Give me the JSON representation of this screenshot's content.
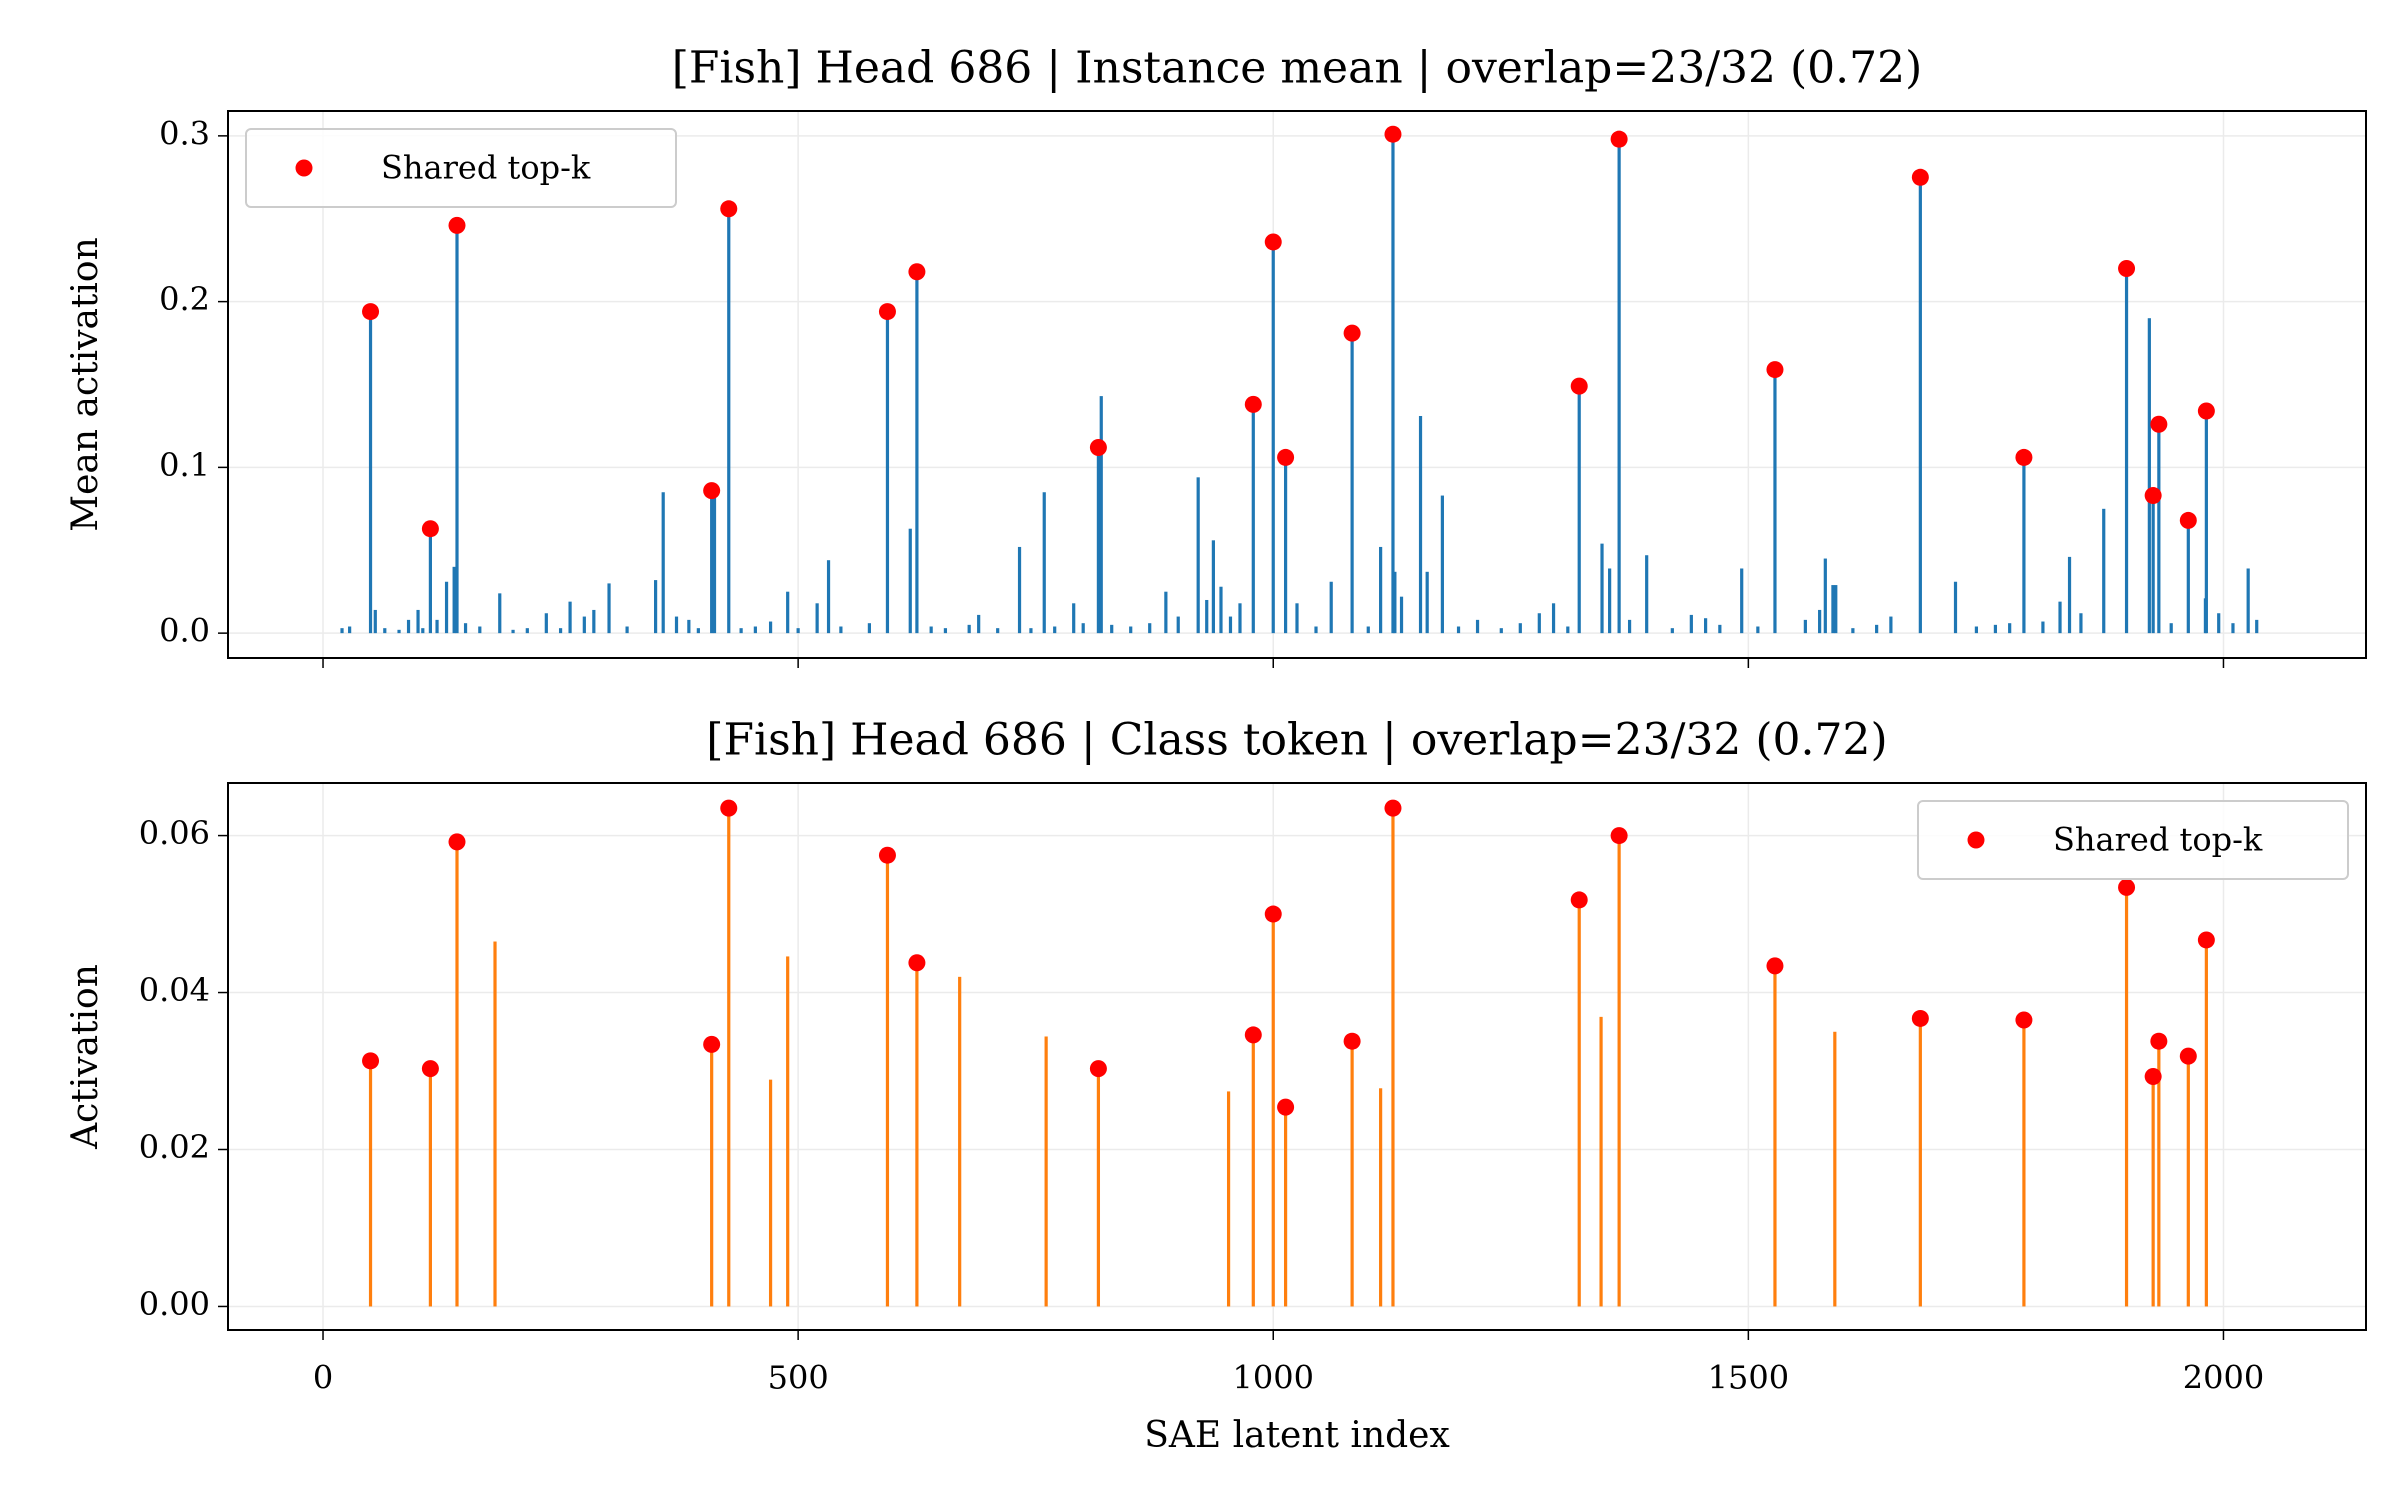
{
  "chart_data": [
    {
      "type": "bar",
      "title": "[Fish] Head 686 | Instance mean | overlap=23/32 (0.72)",
      "ylabel": "Mean activation",
      "color": "#1f77b4",
      "x": [
        20,
        28,
        50,
        55,
        65,
        80,
        90,
        100,
        105,
        113,
        120,
        130,
        138,
        141,
        150,
        165,
        186,
        200,
        215,
        235,
        250,
        260,
        275,
        285,
        301,
        320,
        350,
        358,
        372,
        385,
        395,
        409,
        412,
        427,
        440,
        455,
        471,
        489,
        500,
        520,
        532,
        545,
        575,
        594,
        618,
        625,
        640,
        655,
        680,
        690,
        710,
        733,
        745,
        759,
        770,
        790,
        800,
        816,
        819,
        830,
        850,
        870,
        887,
        900,
        921,
        930,
        937,
        945,
        955,
        965,
        979,
        1000,
        1013,
        1025,
        1045,
        1061,
        1083,
        1100,
        1113,
        1126,
        1128,
        1135,
        1155,
        1162,
        1178,
        1195,
        1215,
        1240,
        1260,
        1280,
        1295,
        1310,
        1322,
        1346,
        1354,
        1364,
        1375,
        1393,
        1420,
        1440,
        1455,
        1470,
        1493,
        1510,
        1528,
        1560,
        1575,
        1581,
        1589,
        1592,
        1610,
        1635,
        1650,
        1681,
        1718,
        1740,
        1760,
        1775,
        1790,
        1810,
        1828,
        1838,
        1850,
        1874,
        1898,
        1922,
        1926,
        1932,
        1945,
        1963,
        1981,
        1982,
        1995,
        2010,
        2026,
        2035
      ],
      "values": [
        0.003,
        0.004,
        0.194,
        0.014,
        0.003,
        0.002,
        0.008,
        0.014,
        0.003,
        0.063,
        0.008,
        0.031,
        0.04,
        0.246,
        0.006,
        0.004,
        0.024,
        0.002,
        0.003,
        0.012,
        0.003,
        0.019,
        0.01,
        0.014,
        0.03,
        0.004,
        0.032,
        0.085,
        0.01,
        0.008,
        0.003,
        0.086,
        0.082,
        0.256,
        0.003,
        0.004,
        0.007,
        0.025,
        0.003,
        0.018,
        0.044,
        0.004,
        0.006,
        0.194,
        0.063,
        0.218,
        0.004,
        0.003,
        0.005,
        0.011,
        0.003,
        0.052,
        0.003,
        0.085,
        0.004,
        0.018,
        0.006,
        0.112,
        0.143,
        0.005,
        0.004,
        0.006,
        0.025,
        0.01,
        0.094,
        0.02,
        0.056,
        0.028,
        0.01,
        0.018,
        0.138,
        0.236,
        0.106,
        0.018,
        0.004,
        0.031,
        0.181,
        0.004,
        0.052,
        0.301,
        0.037,
        0.022,
        0.131,
        0.037,
        0.083,
        0.004,
        0.008,
        0.003,
        0.006,
        0.012,
        0.018,
        0.004,
        0.149,
        0.054,
        0.039,
        0.298,
        0.008,
        0.047,
        0.003,
        0.011,
        0.009,
        0.005,
        0.039,
        0.004,
        0.159,
        0.008,
        0.014,
        0.045,
        0.029,
        0.029,
        0.003,
        0.005,
        0.01,
        0.275,
        0.031,
        0.004,
        0.005,
        0.006,
        0.106,
        0.007,
        0.019,
        0.046,
        0.012,
        0.075,
        0.22,
        0.19,
        0.083,
        0.126,
        0.006,
        0.068,
        0.021,
        0.134,
        0.012,
        0.006,
        0.039,
        0.008
      ],
      "overlay": {
        "type": "scatter",
        "name": "Shared top-k",
        "color": "#ff0000",
        "x": [
          50,
          113,
          141,
          409,
          427,
          594,
          625,
          816,
          979,
          1000,
          1013,
          1083,
          1126,
          1322,
          1364,
          1528,
          1681,
          1790,
          1898,
          1926,
          1932,
          1963,
          1982
        ],
        "values": [
          0.194,
          0.063,
          0.246,
          0.086,
          0.256,
          0.194,
          0.218,
          0.112,
          0.138,
          0.236,
          0.106,
          0.181,
          0.301,
          0.149,
          0.298,
          0.159,
          0.275,
          0.106,
          0.22,
          0.083,
          0.126,
          0.068,
          0.134
        ]
      },
      "xlim": [
        -100,
        2150
      ],
      "ylim": [
        -0.015,
        0.315
      ],
      "xticks": [
        0,
        500,
        1000,
        1500,
        2000
      ],
      "xtick_labels": false,
      "yticks": [
        {
          "value": 0,
          "label": "0.0"
        },
        0.1,
        0.2,
        0.3
      ],
      "grid": true,
      "legend": "upper left"
    },
    {
      "type": "bar",
      "title": "[Fish] Head 686 | Class token | overlap=23/32 (0.72)",
      "xlabel": "SAE latent index",
      "ylabel": "Activation",
      "color": "#ff7f0e",
      "x": [
        50,
        113,
        141,
        181,
        409,
        427,
        471,
        489,
        594,
        625,
        670,
        761,
        816,
        953,
        979,
        1000,
        1013,
        1083,
        1113,
        1126,
        1322,
        1345,
        1364,
        1528,
        1591,
        1681,
        1790,
        1898,
        1926,
        1932,
        1963,
        1982
      ],
      "values": [
        0.0313,
        0.0303,
        0.0592,
        0.0465,
        0.0334,
        0.0635,
        0.0289,
        0.0446,
        0.0575,
        0.0438,
        0.042,
        0.0344,
        0.0303,
        0.0274,
        0.0346,
        0.05,
        0.0254,
        0.0338,
        0.0278,
        0.0635,
        0.0518,
        0.0369,
        0.06,
        0.0434,
        0.035,
        0.0367,
        0.0365,
        0.0534,
        0.0293,
        0.0338,
        0.0319,
        0.0467
      ],
      "overlay": {
        "type": "scatter",
        "name": "Shared top-k",
        "color": "#ff0000",
        "x": [
          50,
          113,
          141,
          409,
          427,
          594,
          625,
          816,
          979,
          1000,
          1013,
          1083,
          1126,
          1322,
          1364,
          1528,
          1681,
          1790,
          1898,
          1926,
          1932,
          1963,
          1982
        ],
        "values": [
          0.0313,
          0.0303,
          0.0592,
          0.0334,
          0.0635,
          0.0575,
          0.0438,
          0.0303,
          0.0346,
          0.05,
          0.0254,
          0.0338,
          0.0635,
          0.0518,
          0.06,
          0.0434,
          0.0367,
          0.0365,
          0.0534,
          0.0293,
          0.0338,
          0.0319,
          0.0467
        ]
      },
      "xlim": [
        -100,
        2150
      ],
      "ylim": [
        -0.003,
        0.0667
      ],
      "xticks": [
        0,
        500,
        1000,
        1500,
        2000
      ],
      "xtick_labels": true,
      "yticks": [
        {
          "value": 0,
          "label": "0.00"
        },
        {
          "value": 0.02,
          "label": "0.02"
        },
        {
          "value": 0.04,
          "label": "0.04"
        },
        {
          "value": 0.06,
          "label": "0.06"
        }
      ],
      "grid": true,
      "legend": "upper right"
    }
  ]
}
